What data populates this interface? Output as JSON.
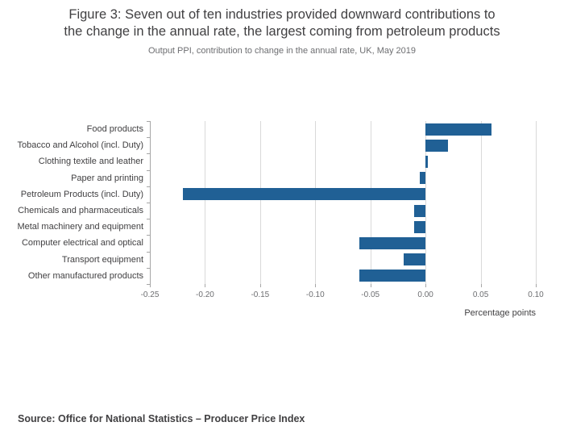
{
  "header": {
    "title": "Figure 3: Seven out of ten industries provided downward contributions to the change in the annual rate, the largest coming from petroleum products",
    "title_lines": [
      "Figure 3: Seven out of ten industries provided downward contributions to",
      "the change in the annual rate, the largest coming from petroleum products"
    ],
    "subtitle": "Output PPI, contribution to change in the annual rate, UK, May 2019"
  },
  "footer": {
    "source": "Source: Office for National Statistics – Producer Price Index"
  },
  "chart_data": {
    "type": "bar",
    "orientation": "horizontal",
    "title": "Figure 3: Seven out of ten industries provided downward contributions to the change in the annual rate, the largest coming from petroleum products",
    "subtitle": "Output PPI, contribution to change in the annual rate, UK, May 2019",
    "categories": [
      "Food products",
      "Tobacco and Alcohol (incl. Duty)",
      "Clothing textile and leather",
      "Paper and printing",
      "Petroleum Products (incl. Duty)",
      "Chemicals and pharmaceuticals",
      "Metal machinery and equipment",
      "Computer electrical and optical",
      "Transport equipment",
      "Other manufactured products"
    ],
    "values": [
      0.06,
      0.02,
      0.002,
      -0.005,
      -0.22,
      -0.01,
      -0.01,
      -0.06,
      -0.02,
      -0.06
    ],
    "xlabel": "Percentage points",
    "ylabel": "",
    "xlim": [
      -0.25,
      0.1
    ],
    "ticks": [
      -0.25,
      -0.2,
      -0.15,
      -0.1,
      -0.05,
      0.0,
      0.05,
      0.1
    ],
    "tick_labels": [
      "-0.25",
      "-0.20",
      "-0.15",
      "-0.10",
      "-0.05",
      "0.00",
      "0.05",
      "0.10"
    ],
    "bar_color": "#206095",
    "grid": true,
    "legend": "none"
  }
}
